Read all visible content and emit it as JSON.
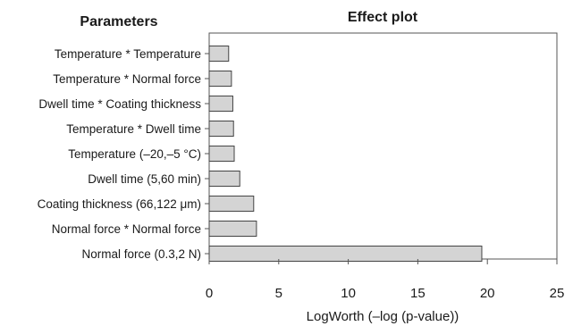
{
  "chart_data": {
    "type": "bar",
    "orientation": "horizontal",
    "title": "Effect plot",
    "category_header": "Parameters",
    "xlabel": "LogWorth (–log (p-value))",
    "xlim": [
      0,
      25
    ],
    "xticks": [
      "0",
      "5",
      "10",
      "15",
      "20",
      "25"
    ],
    "grid": false,
    "bar_color": "#d4d4d4",
    "categories": [
      "Temperature * Temperature",
      "Temperature * Normal force",
      "Dwell time * Coating thickness",
      "Temperature * Dwell time",
      "Temperature (–20,–5 °C)",
      "Dwell time (5,60 min)",
      "Coating thickness (66,122 μm)",
      "Normal force * Normal force",
      "Normal force (0.3,2 N)"
    ],
    "values": [
      1.4,
      1.6,
      1.7,
      1.75,
      1.8,
      2.2,
      3.2,
      3.4,
      19.6
    ]
  }
}
